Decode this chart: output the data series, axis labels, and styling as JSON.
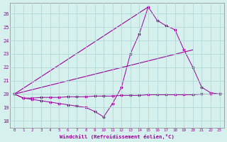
{
  "xlabel": "Windchill (Refroidissement éolien,°C)",
  "background_color": "#d6f0ee",
  "grid_color": "#b0d8d4",
  "line_color": "#990099",
  "xlim": [
    -0.5,
    23.5
  ],
  "ylim": [
    17.5,
    26.8
  ],
  "xticks": [
    0,
    1,
    2,
    3,
    4,
    5,
    6,
    7,
    8,
    9,
    10,
    11,
    12,
    13,
    14,
    15,
    16,
    17,
    18,
    19,
    20,
    21,
    22,
    23
  ],
  "yticks": [
    18,
    19,
    20,
    21,
    22,
    23,
    24,
    25,
    26
  ],
  "line1_x": [
    0,
    1,
    2,
    3,
    4,
    5,
    6,
    7,
    8,
    9,
    10,
    11,
    12,
    13,
    14,
    15,
    16,
    17,
    18,
    19,
    20,
    21,
    22,
    23
  ],
  "line1_y": [
    20.0,
    19.7,
    19.7,
    19.75,
    19.75,
    19.75,
    19.8,
    19.8,
    19.8,
    19.85,
    19.85,
    19.85,
    19.9,
    19.9,
    19.9,
    19.95,
    19.95,
    19.95,
    19.95,
    19.95,
    19.95,
    20.0,
    20.0,
    20.0
  ],
  "line2_x": [
    0,
    1,
    2,
    3,
    4,
    5,
    6,
    7,
    8,
    9,
    10,
    11,
    12,
    13,
    14,
    15,
    16,
    17,
    18,
    19,
    20,
    21,
    22,
    23
  ],
  "line2_y": [
    20.0,
    19.7,
    19.6,
    19.5,
    19.4,
    19.3,
    19.2,
    19.1,
    19.0,
    18.7,
    18.3,
    19.3,
    20.5,
    23.0,
    24.5,
    26.5,
    25.5,
    25.1,
    24.8,
    23.3,
    22.0,
    20.5,
    20.1,
    20.0
  ],
  "line3_x": [
    0,
    15
  ],
  "line3_y": [
    20.0,
    26.5
  ],
  "line4_x": [
    0,
    20
  ],
  "line4_y": [
    20.0,
    23.3
  ]
}
